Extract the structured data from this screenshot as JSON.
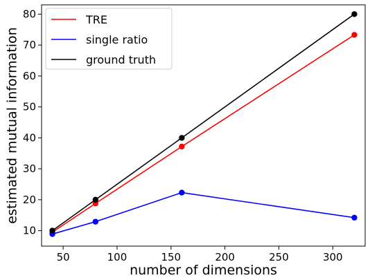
{
  "chart_data": {
    "type": "line",
    "title": "",
    "xlabel": "number of dimensions",
    "ylabel": "estimated mutual information",
    "xlim": [
      30,
      330
    ],
    "ylim": [
      5,
      83
    ],
    "xticks": [
      50,
      100,
      150,
      200,
      250,
      300
    ],
    "yticks": [
      10,
      20,
      30,
      40,
      50,
      60,
      70,
      80
    ],
    "grid": false,
    "legend_position": "top-left",
    "series": [
      {
        "name": "TRE",
        "color": "#ff0000",
        "x": [
          40,
          80,
          160,
          320
        ],
        "y": [
          9.5,
          18.8,
          37.2,
          73.3
        ]
      },
      {
        "name": "single ratio",
        "color": "#0000ff",
        "x": [
          40,
          80,
          160,
          320
        ],
        "y": [
          8.9,
          12.9,
          22.3,
          14.2
        ]
      },
      {
        "name": "ground truth",
        "color": "#000000",
        "x": [
          40,
          80,
          160,
          320
        ],
        "y": [
          10,
          20,
          40,
          80
        ]
      }
    ]
  }
}
